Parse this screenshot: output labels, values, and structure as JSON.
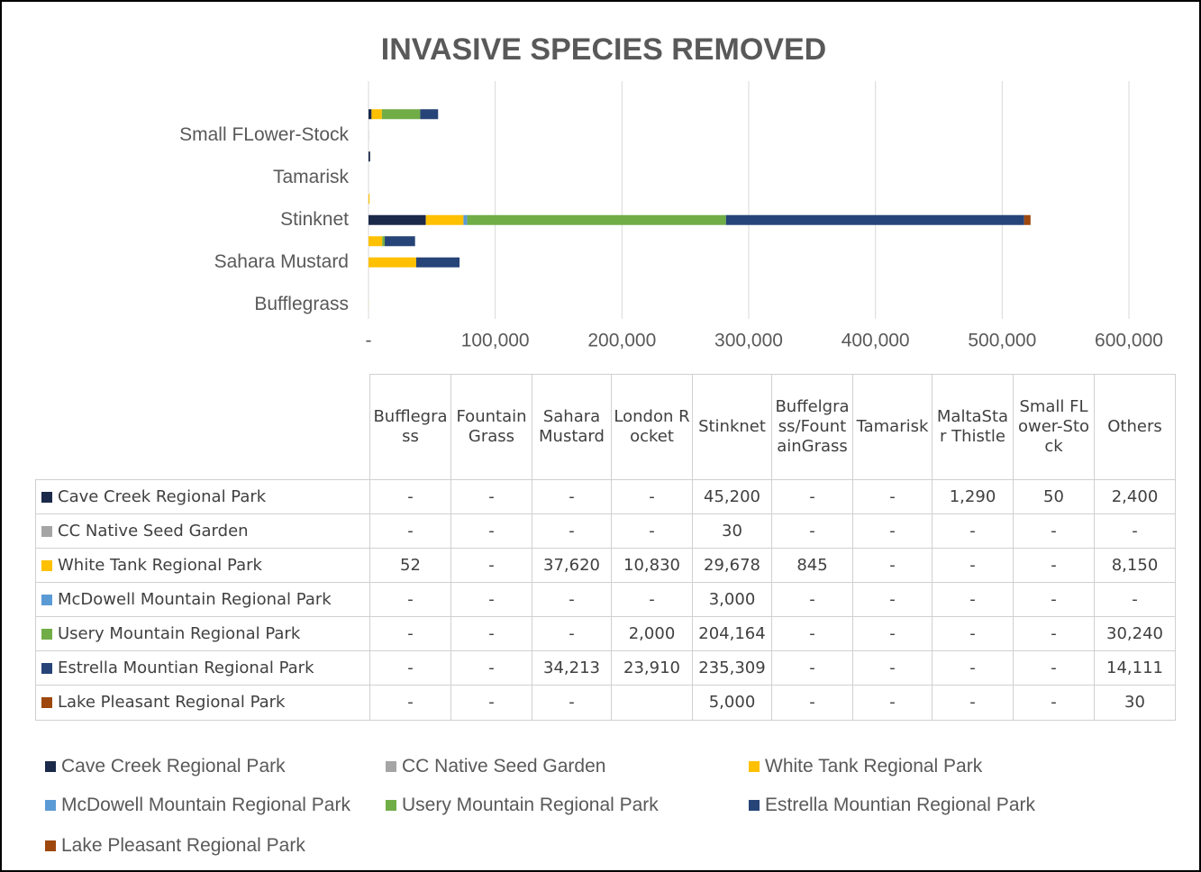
{
  "chart_data": {
    "type": "bar",
    "orientation": "horizontal",
    "stacked": true,
    "title": "INVASIVE SPECIES REMOVED",
    "categories": [
      "Bufflegrass",
      "Fountain Grass",
      "Sahara Mustard",
      "London Rocket",
      "Stinknet",
      "Buffelgrass/FountainGrass",
      "Tamarisk",
      "MaltaStar Thistle",
      "Small FLower-Stock",
      "Others"
    ],
    "xlim": [
      0,
      600000
    ],
    "xticks": [
      {
        "value": 0,
        "label": "-"
      },
      {
        "value": 100000,
        "label": "100,000"
      },
      {
        "value": 200000,
        "label": "200,000"
      },
      {
        "value": 300000,
        "label": "300,000"
      },
      {
        "value": 400000,
        "label": "400,000"
      },
      {
        "value": 500000,
        "label": "500,000"
      },
      {
        "value": 600000,
        "label": "600,000"
      }
    ],
    "grid": true,
    "legend": "bottom",
    "series": [
      {
        "name": "Cave Creek Regional Park",
        "color": "#1b2a4a",
        "values": [
          null,
          null,
          null,
          null,
          45200,
          null,
          null,
          1290,
          50,
          2400
        ],
        "value_labels": [
          "-",
          "-",
          "-",
          "-",
          "45,200",
          "-",
          "-",
          "1,290",
          "50",
          "2,400"
        ]
      },
      {
        "name": "CC Native Seed Garden",
        "color": "#a5a5a5",
        "values": [
          null,
          null,
          null,
          null,
          30,
          null,
          null,
          null,
          null,
          null
        ],
        "value_labels": [
          "-",
          "-",
          "-",
          "-",
          "30",
          "-",
          "-",
          "-",
          "-",
          "-"
        ]
      },
      {
        "name": "White Tank Regional Park",
        "color": "#ffc000",
        "values": [
          52,
          null,
          37620,
          10830,
          29678,
          845,
          null,
          null,
          null,
          8150
        ],
        "value_labels": [
          "52",
          "-",
          "37,620",
          "10,830",
          "29,678",
          "845",
          "-",
          "-",
          "-",
          "8,150"
        ]
      },
      {
        "name": "McDowell Mountain Regional Park",
        "color": "#5b9bd5",
        "values": [
          null,
          null,
          null,
          null,
          3000,
          null,
          null,
          null,
          null,
          null
        ],
        "value_labels": [
          "-",
          "-",
          "-",
          "-",
          "3,000",
          "-",
          "-",
          "-",
          "-",
          "-"
        ]
      },
      {
        "name": "Usery Mountain Regional Park",
        "color": "#70ad47",
        "values": [
          null,
          null,
          null,
          2000,
          204164,
          null,
          null,
          null,
          null,
          30240
        ],
        "value_labels": [
          "-",
          "-",
          "-",
          "2,000",
          "204,164",
          "-",
          "-",
          "-",
          "-",
          "30,240"
        ]
      },
      {
        "name": "Estrella Mountian Regional Park",
        "color": "#264478",
        "values": [
          null,
          null,
          34213,
          23910,
          235309,
          null,
          null,
          null,
          null,
          14111
        ],
        "value_labels": [
          "-",
          "-",
          "34,213",
          "23,910",
          "235,309",
          "-",
          "-",
          "-",
          "-",
          "14,111"
        ]
      },
      {
        "name": "Lake Pleasant Regional Park",
        "color": "#9e480e",
        "values": [
          null,
          null,
          null,
          null,
          5000,
          null,
          null,
          null,
          null,
          30
        ],
        "value_labels": [
          "-",
          "-",
          "-",
          null,
          "5,000",
          "-",
          "-",
          "-",
          "-",
          "30"
        ]
      }
    ]
  }
}
